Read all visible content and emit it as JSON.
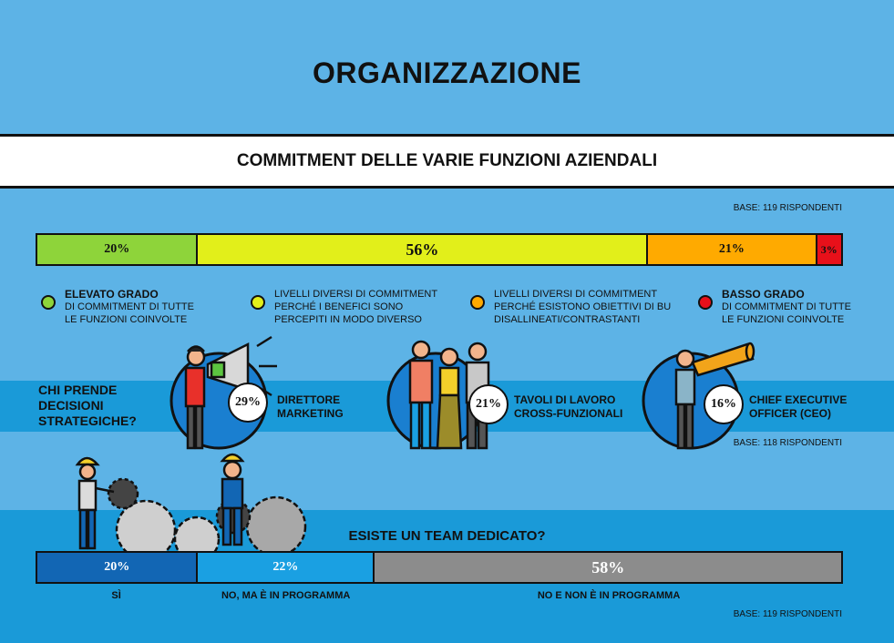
{
  "title": "ORGANIZZAZIONE",
  "subtitle": "COMMITMENT DELLE VARIE FUNZIONI AZIENDALI",
  "base_top": "BASE: 119 RISPONDENTI",
  "base_mid": "BASE: 118 RISPONDENTI",
  "base_bottom": "BASE: 119 RISPONDENTI",
  "colors": {
    "background": "#5db3e6",
    "band_dark": "#1a9ad8",
    "green": "#8ed43a",
    "yellow": "#e2ef1a",
    "orange": "#ffaa00",
    "red": "#e8101a",
    "team_yes": "#1266b4",
    "team_planned": "#1aa0e2",
    "team_no": "#8c8c8c"
  },
  "legend": [
    {
      "title": "ELEVATO GRADO",
      "lines": [
        "DI COMMITMENT DI TUTTE",
        "LE FUNZIONI COINVOLTE"
      ],
      "color": "#8ed43a"
    },
    {
      "title": "",
      "lines": [
        "LIVELLI DIVERSI DI COMMITMENT",
        "PERCHÉ I BENEFICI SONO",
        "PERCEPITI IN MODO DIVERSO"
      ],
      "color": "#e2ef1a"
    },
    {
      "title": "",
      "lines": [
        "LIVELLI DIVERSI DI COMMITMENT",
        "PERCHÉ ESISTONO OBIETTIVI DI BU",
        "DISALLINEATI/CONTRASTANTI"
      ],
      "color": "#ffaa00"
    },
    {
      "title": "BASSO GRADO",
      "lines": [
        "DI COMMITMENT DI TUTTE",
        "LE FUNZIONI COINVOLTE"
      ],
      "color": "#e8101a"
    }
  ],
  "decision": {
    "question_lines": [
      "CHI PRENDE",
      "DECISIONI",
      "STRATEGICHE?"
    ],
    "items": [
      {
        "pct": "29%",
        "lines": [
          "DIRETTORE",
          "MARKETING"
        ],
        "icon": "megaphone-person-icon"
      },
      {
        "pct": "21%",
        "lines": [
          "TAVOLI DI LAVORO",
          "CROSS-FUNZIONALI"
        ],
        "icon": "group-people-icon"
      },
      {
        "pct": "16%",
        "lines": [
          "CHIEF EXECUTIVE",
          "OFFICER (CEO)"
        ],
        "icon": "telescope-person-icon"
      }
    ]
  },
  "team_question": "ESISTE UN TEAM DEDICATO?",
  "chart_data": [
    {
      "type": "bar",
      "stacked": true,
      "orientation": "horizontal",
      "categories": [
        "ELEVATO GRADO",
        "LIVELLI DIVERSI (BENEFICI)",
        "LIVELLI DIVERSI (OBIETTIVI BU)",
        "BASSO GRADO"
      ],
      "values": [
        20,
        56,
        21,
        3
      ],
      "labels": [
        "20%",
        "56%",
        "21%",
        "3%"
      ],
      "colors": [
        "#8ed43a",
        "#e2ef1a",
        "#ffaa00",
        "#e8101a"
      ]
    },
    {
      "type": "bar",
      "stacked": true,
      "orientation": "horizontal",
      "categories": [
        "SÌ",
        "NO, MA È IN PROGRAMMA",
        "NO E NON È IN PROGRAMMA"
      ],
      "values": [
        20,
        22,
        58
      ],
      "labels": [
        "20%",
        "22%",
        "58%"
      ],
      "colors": [
        "#1266b4",
        "#1aa0e2",
        "#8c8c8c"
      ]
    }
  ]
}
